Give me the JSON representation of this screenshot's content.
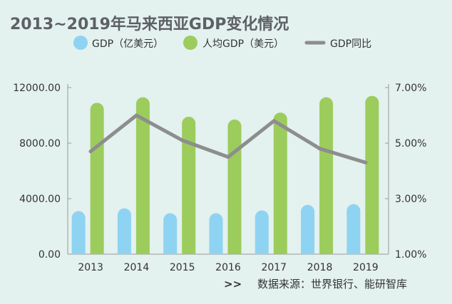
{
  "chart_data": {
    "type": "bar",
    "title": "2013~2019年马来西亚GDP变化情况",
    "categories": [
      "2013",
      "2014",
      "2015",
      "2016",
      "2017",
      "2018",
      "2019"
    ],
    "series": [
      {
        "name": "GDP（亿美元）",
        "type": "bar",
        "axis": "left",
        "color": "#8fd3f2",
        "values": [
          3100,
          3300,
          2950,
          2950,
          3150,
          3550,
          3600
        ]
      },
      {
        "name": "人均GDP（美元）",
        "type": "bar",
        "axis": "left",
        "color": "#9ccc5c",
        "values": [
          10900,
          11300,
          9900,
          9700,
          10200,
          11300,
          11400
        ]
      },
      {
        "name": "GDP同比",
        "type": "line",
        "axis": "right",
        "color": "#8d8d8f",
        "values": [
          4.7,
          6.0,
          5.1,
          4.5,
          5.8,
          4.8,
          4.3
        ]
      }
    ],
    "y_left": {
      "ylim": [
        0,
        12000
      ],
      "ticks": [
        0,
        4000,
        8000,
        12000
      ],
      "tick_labels": [
        "0.00",
        "4000.00",
        "8000.00",
        "12000.00"
      ]
    },
    "y_right": {
      "ylim": [
        1,
        7
      ],
      "ticks": [
        1,
        3,
        5,
        7
      ],
      "tick_labels": [
        "1.00%",
        "3.00%",
        "5.00%",
        "7.00%"
      ]
    },
    "grid": false,
    "legend": "top"
  },
  "source": {
    "arrows": ">>",
    "text": "数据来源：世界银行、能研智库"
  }
}
